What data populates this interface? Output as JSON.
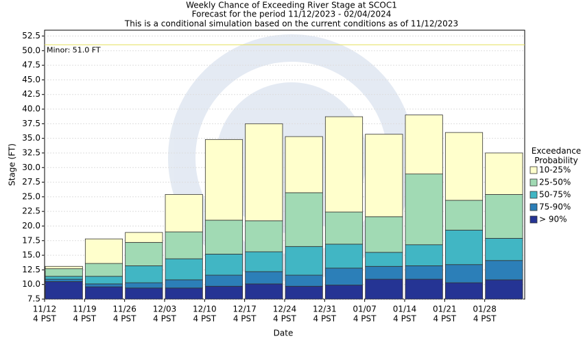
{
  "chart_data": {
    "type": "exceedance-bar",
    "title": "Weekly Chance of Exceeding River Stage at SCOC1",
    "subtitle": "Forecast for the period 11/12/2023 - 02/04/2024",
    "note": "This is a conditional simulation based on the current conditions as of 11/12/2023",
    "x_label": "Date",
    "y_label": "Stage (FT)",
    "categories": [
      "11/12",
      "11/19",
      "11/26",
      "12/03",
      "12/10",
      "12/17",
      "12/24",
      "12/31",
      "01/07",
      "01/14",
      "01/21",
      "01/28"
    ],
    "category_sublabel": "4 PST",
    "legend_title": "Exceedance Probability",
    "legend_position": "right",
    "series": [
      {
        "name": "> 90%",
        "color": "#253494",
        "values": [
          10.5,
          9.6,
          9.4,
          9.4,
          9.7,
          10.1,
          9.7,
          9.9,
          10.9,
          10.9,
          10.3,
          10.8
        ]
      },
      {
        "name": "75-90%",
        "color": "#2c7fb8",
        "values": [
          10.9,
          10.1,
          10.3,
          10.8,
          11.6,
          12.2,
          11.6,
          12.8,
          13.1,
          13.2,
          13.4,
          14.1
        ]
      },
      {
        "name": "50-75%",
        "color": "#41b6c4",
        "values": [
          11.4,
          11.4,
          13.2,
          14.4,
          15.2,
          15.6,
          16.5,
          16.9,
          15.5,
          16.8,
          19.3,
          17.9
        ]
      },
      {
        "name": "25-50%",
        "color": "#a1dab4",
        "values": [
          12.7,
          13.6,
          17.2,
          19.0,
          21.0,
          20.9,
          25.7,
          22.4,
          21.6,
          28.9,
          24.4,
          25.4
        ]
      },
      {
        "name": "10-25%",
        "color": "#ffffcc",
        "values": [
          13.1,
          17.8,
          18.9,
          25.4,
          34.8,
          37.5,
          35.3,
          38.7,
          35.7,
          39.0,
          36.0,
          32.5
        ]
      }
    ],
    "threshold": {
      "label": "Minor: 51.0 FT",
      "value": 51.0,
      "color": "#e6e05a"
    },
    "ylim": [
      7.5,
      53.5
    ],
    "yticks": [
      7.5,
      10.0,
      12.5,
      15.0,
      17.5,
      20.0,
      22.5,
      25.0,
      27.5,
      30.0,
      32.5,
      35.0,
      37.5,
      40.0,
      42.5,
      45.0,
      47.5,
      50.0,
      52.5
    ],
    "grid": true
  }
}
